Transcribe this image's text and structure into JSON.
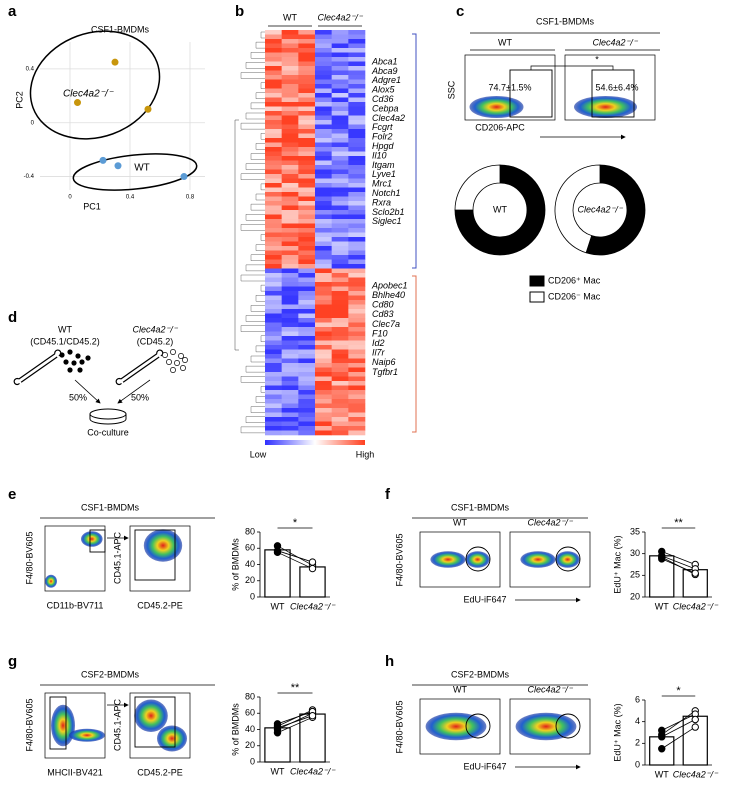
{
  "panel_labels": [
    "a",
    "b",
    "c",
    "d",
    "e",
    "f",
    "g",
    "h"
  ],
  "heatmap": {
    "groups": [
      "WT",
      "Clec4a2⁻/⁻"
    ],
    "genes_up": [
      "Abca1",
      "Abca9",
      "Adgre1",
      "Alox5",
      "Cd36",
      "Cebpa",
      "Clec4a2",
      "Fcgrt",
      "Folr2",
      "Hpgd",
      "Il10",
      "Itgam",
      "Lyve1",
      "Mrc1",
      "Notch1",
      "Rxra",
      "Sclo2b1",
      "Siglec1"
    ],
    "genes_down": [
      "Apobec1",
      "Bhlhe40",
      "Cd80",
      "Cd83",
      "Clec7a",
      "F10",
      "Id2",
      "Il7r",
      "Naip6",
      "Tgfbr1"
    ],
    "scale": [
      "Low",
      "High"
    ]
  },
  "flow_c": {
    "title": "CSF1-BMDMs",
    "groups": [
      "WT",
      "Clec4a2⁻/⁻"
    ],
    "y_label": "SSC",
    "x_label": "CD206-APC",
    "gates": [
      "74.7±1.5%",
      "54.6±6.4%"
    ],
    "significance": "*",
    "legend": [
      "CD206⁺ Mac",
      "CD206⁻ Mac"
    ]
  },
  "scheme_d": {
    "wt": "WT",
    "wt_marker": "(CD45.1/CD45.2)",
    "ko": "Clec4a2⁻/⁻",
    "ko_marker": "(CD45.2)",
    "ratios": [
      "50%",
      "50%"
    ],
    "result": "Co-culture"
  },
  "flow_e": {
    "title": "CSF1-BMDMs",
    "y_labels": [
      "F4/80-BV605",
      "CD45.1-APC"
    ],
    "x_labels": [
      "CD11b-BV711",
      "CD45.2-PE"
    ]
  },
  "flow_f": {
    "title": "CSF1-BMDMs",
    "groups": [
      "WT",
      "Clec4a2⁻/⁻"
    ],
    "y_label": "F4/80-BV605",
    "x_label": "EdU-iF647"
  },
  "flow_g": {
    "title": "CSF2-BMDMs",
    "y_labels": [
      "F4/80-BV605",
      "CD45.1-APC"
    ],
    "x_labels": [
      "MHCII-BV421",
      "CD45.2-PE"
    ]
  },
  "flow_h": {
    "title": "CSF2-BMDMs",
    "groups": [
      "WT",
      "Clec4a2⁻/⁻"
    ],
    "y_label": "F4/80-BV605",
    "x_label": "EdU-iF647"
  },
  "chart_data": [
    {
      "type": "scatter",
      "title": "CSF1-BMDMs",
      "x_label": "PC1",
      "y_label": "PC2",
      "xlim": [
        -0.2,
        0.9
      ],
      "ylim": [
        -0.5,
        0.6
      ],
      "xticks": [
        0,
        0.4,
        0.8
      ],
      "yticks": [
        -0.4,
        0,
        0.4
      ],
      "grid": true,
      "series": [
        {
          "name": "Clec4a2⁻/⁻",
          "color": "#c8960c",
          "x": [
            0.3,
            0.05,
            0.52
          ],
          "values": [
            0.45,
            0.15,
            0.1
          ]
        },
        {
          "name": "WT",
          "color": "#5b9bd5",
          "x": [
            0.22,
            0.32,
            0.76
          ],
          "values": [
            -0.28,
            -0.32,
            -0.4
          ]
        }
      ]
    },
    {
      "type": "pie",
      "title": "WT",
      "values": [
        75,
        25
      ],
      "colors": [
        "#000000",
        "#ffffff"
      ]
    },
    {
      "type": "pie",
      "title": "Clec4a2⁻/⁻",
      "values": [
        55,
        45
      ],
      "colors": [
        "#000000",
        "#ffffff"
      ]
    },
    {
      "type": "bar",
      "y_label": "% of BMDMs",
      "categories": [
        "WT",
        "Clec4a2⁻/⁻"
      ],
      "values": [
        58,
        37
      ],
      "points": [
        [
          63,
          57,
          55
        ],
        [
          39,
          43,
          35
        ]
      ],
      "significance": "*",
      "ylim": [
        0,
        80
      ],
      "yticks": [
        0,
        20,
        40,
        60,
        80
      ]
    },
    {
      "type": "bar",
      "y_label": "EdU⁺ Mac (%)",
      "categories": [
        "WT",
        "Clec4a2⁻/⁻"
      ],
      "values": [
        29.5,
        26.3
      ],
      "points": [
        [
          30.5,
          29.5,
          29.2,
          28.8
        ],
        [
          27.5,
          26.5,
          25.2,
          25.5
        ]
      ],
      "significance": "**",
      "ylim": [
        20,
        35
      ],
      "yticks": [
        20,
        25,
        30,
        35
      ]
    },
    {
      "type": "bar",
      "y_label": "% of BMDMs",
      "categories": [
        "WT",
        "Clec4a2⁻/⁻"
      ],
      "values": [
        42,
        59
      ],
      "points": [
        [
          36,
          40,
          44,
          47,
          42
        ],
        [
          55,
          60,
          64,
          62,
          57
        ]
      ],
      "significance": "**",
      "ylim": [
        0,
        80
      ],
      "yticks": [
        0,
        20,
        40,
        60,
        80
      ]
    },
    {
      "type": "bar",
      "y_label": "EdU⁺ Mac (%)",
      "categories": [
        "WT",
        "Clec4a2⁻/⁻"
      ],
      "values": [
        2.6,
        4.5
      ],
      "points": [
        [
          1.5,
          2.8,
          3.2,
          2.6
        ],
        [
          3.5,
          5.0,
          4.7,
          4.2
        ]
      ],
      "significance": "*",
      "ylim": [
        0,
        6
      ],
      "yticks": [
        0,
        2,
        4,
        6
      ]
    }
  ]
}
